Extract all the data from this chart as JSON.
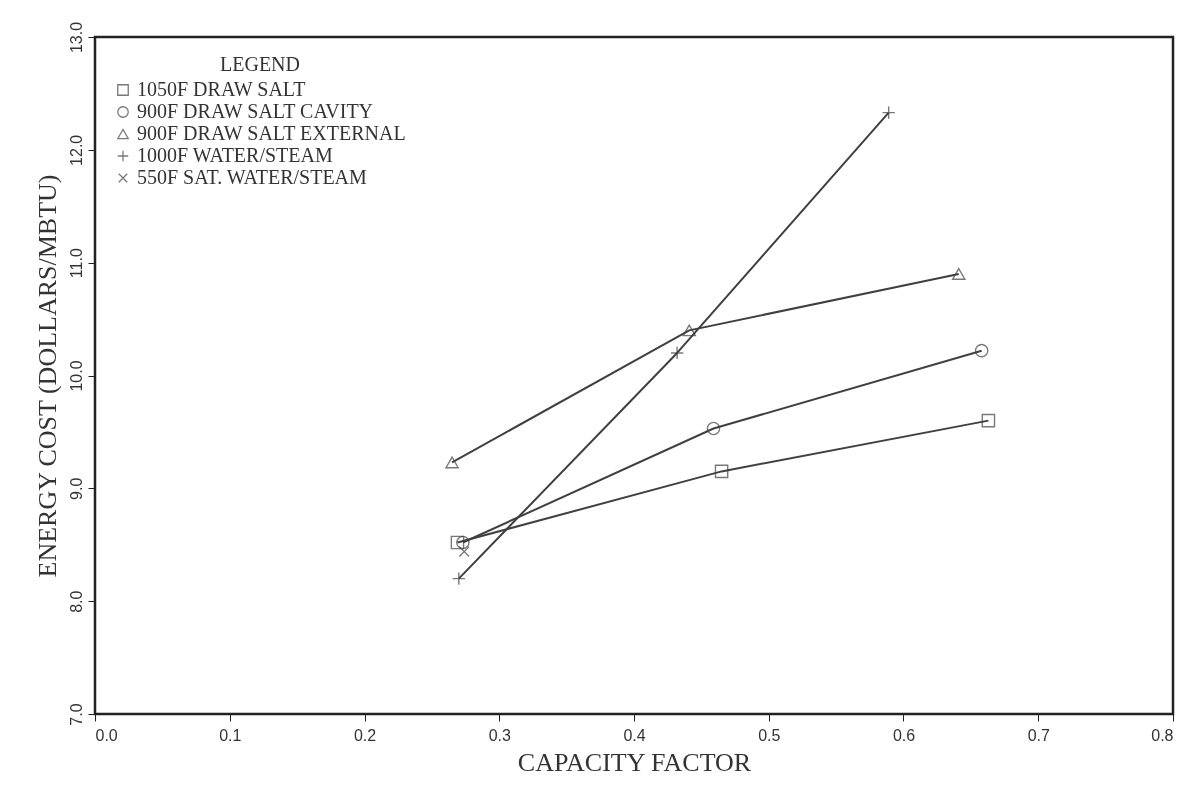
{
  "chart_data": {
    "type": "line",
    "xlabel": "CAPACITY FACTOR",
    "ylabel": "ENERGY COST (DOLLARS/MBTU)",
    "legend_title": "LEGEND",
    "xlim": [
      0,
      0.8
    ],
    "ylim": [
      7,
      13
    ],
    "xticks": [
      {
        "value": 0,
        "label": "0.0"
      },
      0.1,
      0.2,
      0.3,
      0.4,
      0.5,
      0.6,
      0.7,
      0.8
    ],
    "yticks": [
      {
        "value": 7,
        "label": "7.0"
      },
      {
        "value": 8,
        "label": "8.0"
      },
      {
        "value": 9,
        "label": "9.0"
      },
      {
        "value": 10,
        "label": "10.0"
      },
      {
        "value": 11,
        "label": "11.0"
      },
      {
        "value": 12,
        "label": "12.0"
      },
      {
        "value": 13,
        "label": "13.0"
      }
    ],
    "grid": false,
    "legend": "top left",
    "series": [
      {
        "name": "1050F DRAW SALT",
        "color": "#404040",
        "marker": "square",
        "x": [
          0.269,
          0.465,
          0.663
        ],
        "values": [
          8.52,
          9.15,
          9.6
        ]
      },
      {
        "name": "900F DRAW SALT CAVITY",
        "color": "#404040",
        "marker": "circle",
        "x": [
          0.273,
          0.459,
          0.658
        ],
        "values": [
          8.52,
          9.53,
          10.22
        ]
      },
      {
        "name": "900F DRAW SALT EXTERNAL",
        "color": "#404040",
        "marker": "triangle",
        "x": [
          0.265,
          0.441,
          0.641
        ],
        "values": [
          9.23,
          10.4,
          10.9
        ]
      },
      {
        "name": "1000F WATER/STEAM",
        "color": "#404040",
        "marker": "cross",
        "x": [
          0.27,
          0.432,
          0.589
        ],
        "values": [
          8.2,
          10.2,
          12.33
        ]
      },
      {
        "name": "550F SAT. WATER/STEAM",
        "color": "#404040",
        "marker": "x",
        "type": "scatter",
        "x": [
          0.274
        ],
        "values": [
          8.44
        ]
      }
    ]
  }
}
